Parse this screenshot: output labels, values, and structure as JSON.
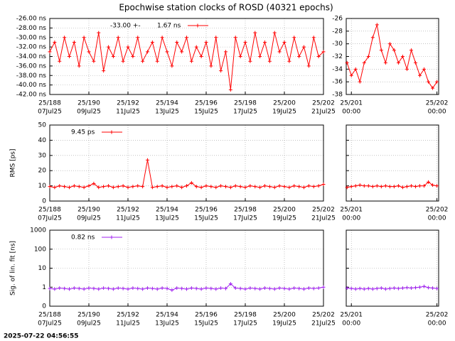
{
  "title": "Epochwise station clocks of ROSD (40321 epochs)",
  "timestamp": "2025-07-22 04:56:55",
  "chart_data": [
    {
      "type": "line",
      "legend_prefix": "-33.00 +-",
      "x": [
        188,
        188.25,
        188.5,
        188.75,
        189,
        189.25,
        189.5,
        189.75,
        190,
        190.25,
        190.5,
        190.75,
        191,
        191.25,
        191.5,
        191.75,
        192,
        192.25,
        192.5,
        192.75,
        193,
        193.25,
        193.5,
        193.75,
        194,
        194.25,
        194.5,
        194.75,
        195,
        195.25,
        195.5,
        195.75,
        196,
        196.25,
        196.5,
        196.75,
        197,
        197.25,
        197.5,
        197.75,
        198,
        198.25,
        198.5,
        198.75,
        199,
        199.25,
        199.5,
        199.75,
        200,
        200.25,
        200.5,
        200.75,
        201,
        201.25,
        201.5,
        201.75,
        202
      ],
      "series": [
        {
          "name": "1.67 ns",
          "color": "#ff0000",
          "values": [
            -33,
            -31,
            -35,
            -30,
            -34,
            -31,
            -36,
            -30,
            -33,
            -35,
            -29,
            -37,
            -32,
            -34,
            -30,
            -35,
            -32,
            -34,
            -30,
            -35,
            -33,
            -31,
            -35,
            -30,
            -33,
            -36,
            -31,
            -33,
            -30,
            -35,
            -32,
            -34,
            -31,
            -36,
            -30,
            -37,
            -33,
            -41,
            -30,
            -34,
            -31,
            -35,
            -29,
            -34,
            -31,
            -35,
            -29,
            -33,
            -31,
            -35,
            -30,
            -34,
            -32,
            -36,
            -30,
            -34,
            -33
          ]
        }
      ],
      "xlim": [
        188,
        202
      ],
      "xticks": [
        {
          "value": 188,
          "label": "25/188"
        },
        {
          "value": 190,
          "label": "25/190"
        },
        {
          "value": 192,
          "label": "25/192"
        },
        {
          "value": 194,
          "label": "25/194"
        },
        {
          "value": 196,
          "label": "25/196"
        },
        {
          "value": 198,
          "label": "25/198"
        },
        {
          "value": 200,
          "label": "25/200"
        },
        {
          "value": 202,
          "label": "25/202"
        }
      ],
      "xtick_sublabels": [
        "07Jul25",
        "09Jul25",
        "11Jul25",
        "13Jul25",
        "15Jul25",
        "17Jul25",
        "19Jul25",
        "21Jul25"
      ],
      "ylim": [
        -42,
        -26
      ],
      "yticks": [
        {
          "value": -42,
          "label": "-42.00 ns"
        },
        {
          "value": -40,
          "label": "-40.00 ns"
        },
        {
          "value": -38,
          "label": "-38.00 ns"
        },
        {
          "value": -36,
          "label": "-36.00 ns"
        },
        {
          "value": -34,
          "label": "-34.00 ns"
        },
        {
          "value": -32,
          "label": "-32.00 ns"
        },
        {
          "value": -30,
          "label": "-30.00 ns"
        },
        {
          "value": -28,
          "label": "-28.00 ns"
        },
        {
          "value": -26,
          "label": "-26.00 ns"
        }
      ],
      "grid": true,
      "log_scale": false,
      "show_ytick_labels": true
    },
    {
      "type": "line",
      "x": [
        200.95,
        201,
        201.05,
        201.1,
        201.15,
        201.2,
        201.25,
        201.3,
        201.35,
        201.4,
        201.45,
        201.5,
        201.55,
        201.6,
        201.65,
        201.7,
        201.75,
        201.8,
        201.85,
        201.9,
        201.95,
        202
      ],
      "series": [
        {
          "color": "#ff0000",
          "values": [
            -33,
            -35,
            -34,
            -36,
            -33,
            -32,
            -29,
            -27,
            -31,
            -33,
            -30,
            -31,
            -33,
            -32,
            -34,
            -31,
            -33,
            -35,
            -34,
            -36,
            -37,
            -36
          ]
        }
      ],
      "xlim": [
        200.94,
        202.02
      ],
      "xticks": [
        {
          "value": 201,
          "label": "25/201"
        },
        {
          "value": 202,
          "label": "25/202"
        }
      ],
      "xtick_sublabels": [
        "00:00",
        "00:00"
      ],
      "ylim": [
        -38,
        -26
      ],
      "yticks": [
        -38,
        -36,
        -34,
        -32,
        -30,
        -28,
        -26
      ],
      "grid": true,
      "log_scale": false,
      "show_ytick_labels": true
    },
    {
      "type": "line",
      "ylabel": "RMS [ps]",
      "x": [
        188,
        188.25,
        188.5,
        188.75,
        189,
        189.25,
        189.5,
        189.75,
        190,
        190.25,
        190.5,
        190.75,
        191,
        191.25,
        191.5,
        191.75,
        192,
        192.25,
        192.5,
        192.75,
        193,
        193.25,
        193.5,
        193.75,
        194,
        194.25,
        194.5,
        194.75,
        195,
        195.25,
        195.5,
        195.75,
        196,
        196.25,
        196.5,
        196.75,
        197,
        197.25,
        197.5,
        197.75,
        198,
        198.25,
        198.5,
        198.75,
        199,
        199.25,
        199.5,
        199.75,
        200,
        200.25,
        200.5,
        200.75,
        201,
        201.25,
        201.5,
        201.75,
        202
      ],
      "series": [
        {
          "name": "9.45 ps",
          "color": "#ff0000",
          "values": [
            9.5,
            9,
            10,
            9.5,
            9,
            10,
            9.5,
            9,
            10,
            11.5,
            9,
            9.5,
            10,
            9,
            9.5,
            10,
            9,
            9.5,
            10,
            9.5,
            27,
            9,
            9.5,
            10,
            9,
            9.5,
            10,
            9,
            10,
            12,
            9.5,
            9,
            10,
            9.5,
            9,
            10,
            9.5,
            9,
            10,
            9.5,
            9,
            10,
            9.5,
            9,
            10,
            9.5,
            9,
            10,
            9.5,
            9,
            10,
            9.5,
            9,
            10,
            9.5,
            10,
            11
          ]
        }
      ],
      "xlim": [
        188,
        202
      ],
      "xticks": [
        {
          "value": 188,
          "label": "25/188"
        },
        {
          "value": 190,
          "label": "25/190"
        },
        {
          "value": 192,
          "label": "25/192"
        },
        {
          "value": 194,
          "label": "25/194"
        },
        {
          "value": 196,
          "label": "25/196"
        },
        {
          "value": 198,
          "label": "25/198"
        },
        {
          "value": 200,
          "label": "25/200"
        },
        {
          "value": 202,
          "label": "25/202"
        }
      ],
      "xtick_sublabels": [
        "07Jul25",
        "09Jul25",
        "11Jul25",
        "13Jul25",
        "15Jul25",
        "17Jul25",
        "19Jul25",
        "21Jul25"
      ],
      "ylim": [
        0,
        50
      ],
      "yticks": [
        0,
        10,
        20,
        30,
        40,
        50
      ],
      "grid": true,
      "log_scale": false,
      "show_ytick_labels": true
    },
    {
      "type": "line",
      "x": [
        200.95,
        201,
        201.05,
        201.1,
        201.15,
        201.2,
        201.25,
        201.3,
        201.35,
        201.4,
        201.45,
        201.5,
        201.55,
        201.6,
        201.65,
        201.7,
        201.75,
        201.8,
        201.85,
        201.9,
        201.95,
        202
      ],
      "series": [
        {
          "color": "#ff0000",
          "values": [
            9,
            9.5,
            10,
            10.5,
            10,
            10,
            9.5,
            10,
            9.5,
            10,
            9.5,
            9.5,
            10,
            9,
            9.5,
            10,
            9.5,
            10,
            10,
            12.5,
            10.5,
            10
          ]
        }
      ],
      "xlim": [
        200.94,
        202.02
      ],
      "xticks": [
        {
          "value": 201,
          "label": "25/201"
        },
        {
          "value": 202,
          "label": "25/202"
        }
      ],
      "xtick_sublabels": [
        "00:00",
        "00:00"
      ],
      "ylim": [
        0,
        50
      ],
      "yticks": [
        0,
        10,
        20,
        30,
        40,
        50
      ],
      "grid": true,
      "log_scale": false,
      "show_ytick_labels": false
    },
    {
      "type": "line",
      "ylabel": "Sig. of lin. fit [ns]",
      "x": [
        188,
        188.25,
        188.5,
        188.75,
        189,
        189.25,
        189.5,
        189.75,
        190,
        190.25,
        190.5,
        190.75,
        191,
        191.25,
        191.5,
        191.75,
        192,
        192.25,
        192.5,
        192.75,
        193,
        193.25,
        193.5,
        193.75,
        194,
        194.25,
        194.5,
        194.75,
        195,
        195.25,
        195.5,
        195.75,
        196,
        196.25,
        196.5,
        196.75,
        197,
        197.25,
        197.5,
        197.75,
        198,
        198.25,
        198.5,
        198.75,
        199,
        199.25,
        199.5,
        199.75,
        200,
        200.25,
        200.5,
        200.75,
        201,
        201.25,
        201.5,
        201.75,
        202
      ],
      "series": [
        {
          "name": "0.82 ns",
          "color": "#a020f0",
          "values": [
            0.85,
            0.8,
            0.9,
            0.85,
            0.8,
            0.9,
            0.85,
            0.8,
            0.9,
            0.85,
            0.8,
            0.9,
            0.85,
            0.8,
            0.9,
            0.85,
            0.8,
            0.9,
            0.85,
            0.8,
            0.9,
            0.85,
            0.8,
            0.9,
            0.85,
            0.7,
            0.9,
            0.85,
            0.8,
            0.9,
            0.85,
            0.8,
            0.9,
            0.85,
            0.8,
            0.9,
            0.85,
            1.5,
            0.9,
            0.85,
            0.8,
            0.9,
            0.85,
            0.8,
            0.9,
            0.85,
            0.8,
            0.9,
            0.85,
            0.8,
            0.9,
            0.85,
            0.8,
            0.9,
            0.85,
            0.9,
            1
          ]
        }
      ],
      "xlim": [
        188,
        202
      ],
      "xticks": [
        {
          "value": 188,
          "label": "25/188"
        },
        {
          "value": 190,
          "label": "25/190"
        },
        {
          "value": 192,
          "label": "25/192"
        },
        {
          "value": 194,
          "label": "25/194"
        },
        {
          "value": 196,
          "label": "25/196"
        },
        {
          "value": 198,
          "label": "25/198"
        },
        {
          "value": 200,
          "label": "25/200"
        },
        {
          "value": 202,
          "label": "25/202"
        }
      ],
      "xtick_sublabels": [
        "07Jul25",
        "09Jul25",
        "11Jul25",
        "13Jul25",
        "15Jul25",
        "17Jul25",
        "19Jul25",
        "21Jul25"
      ],
      "ylim": [
        0.1,
        1000
      ],
      "yticks": [
        {
          "value": 0.1,
          "label": "0"
        },
        1,
        10,
        100,
        1000
      ],
      "grid": true,
      "log_scale": true,
      "show_ytick_labels": true
    },
    {
      "type": "line",
      "x": [
        200.95,
        201,
        201.05,
        201.1,
        201.15,
        201.2,
        201.25,
        201.3,
        201.35,
        201.4,
        201.45,
        201.5,
        201.55,
        201.6,
        201.65,
        201.7,
        201.75,
        201.8,
        201.85,
        201.9,
        201.95,
        202
      ],
      "series": [
        {
          "color": "#a020f0",
          "values": [
            0.9,
            0.85,
            0.8,
            0.85,
            0.8,
            0.85,
            0.8,
            0.85,
            0.9,
            0.8,
            0.85,
            0.9,
            0.85,
            0.9,
            0.95,
            0.9,
            0.95,
            1,
            1.1,
            0.95,
            0.9,
            0.85
          ]
        }
      ],
      "xlim": [
        200.94,
        202.02
      ],
      "xticks": [
        {
          "value": 201,
          "label": "25/201"
        },
        {
          "value": 202,
          "label": "25/202"
        }
      ],
      "xtick_sublabels": [
        "00:00",
        "00:00"
      ],
      "ylim": [
        0.1,
        1000
      ],
      "yticks": [
        {
          "value": 0.1,
          "label": "0"
        },
        1,
        10,
        100,
        1000
      ],
      "grid": true,
      "log_scale": true,
      "show_ytick_labels": false
    }
  ]
}
